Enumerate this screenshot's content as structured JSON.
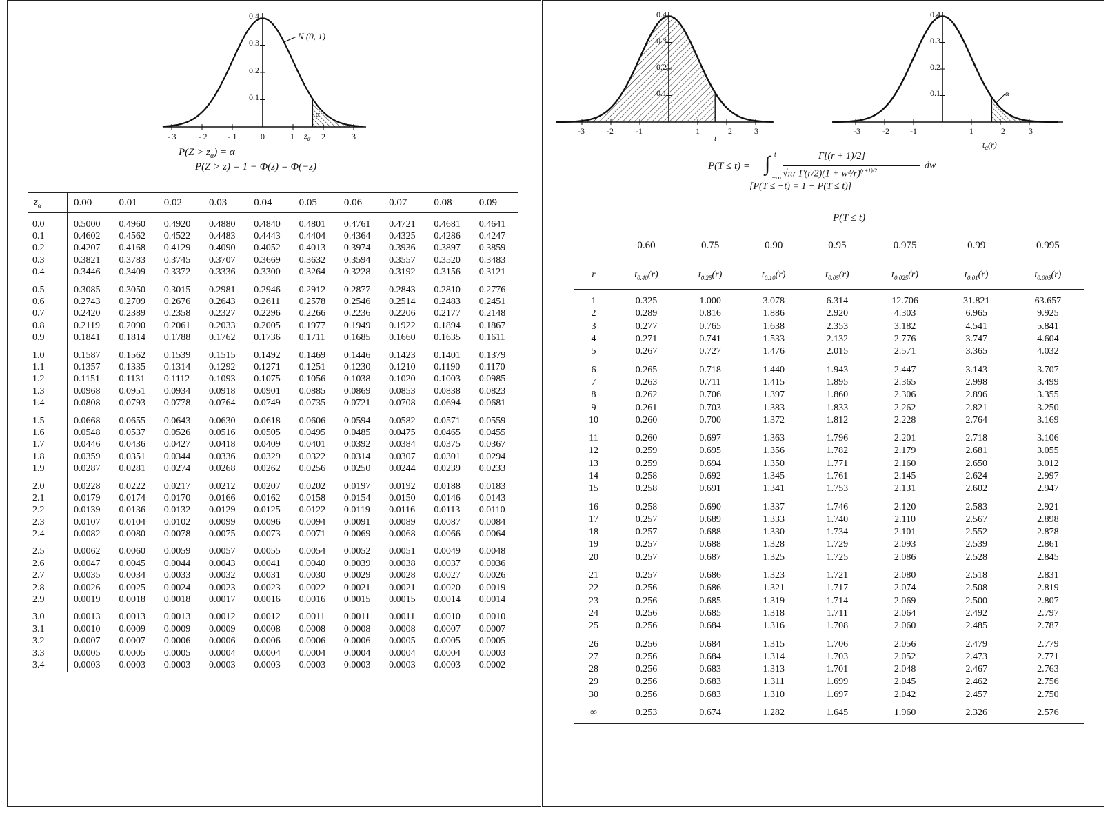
{
  "left": {
    "figure": {
      "y_ticks": [
        "0.4",
        "0.3",
        "0.2",
        "0.1"
      ],
      "x_ticks": [
        "- 3",
        "- 2",
        "- 1",
        "0",
        "1",
        "2",
        "3"
      ],
      "curve_label": "N (0, 1)",
      "z_label": "z",
      "z_sub": "α",
      "alpha_label": "α"
    },
    "formula_1": "P(Z > z",
    "formula_1_sub": "α",
    "formula_1_end": ") = α",
    "formula_2": "P(Z > z) = 1 − Φ(z) = Φ(−z)",
    "table": {
      "corner": "z",
      "corner_sub": "α",
      "columns": [
        "0.00",
        "0.01",
        "0.02",
        "0.03",
        "0.04",
        "0.05",
        "0.06",
        "0.07",
        "0.08",
        "0.09"
      ],
      "rows": [
        [
          "0.0",
          "0.5000",
          "0.4960",
          "0.4920",
          "0.4880",
          "0.4840",
          "0.4801",
          "0.4761",
          "0.4721",
          "0.4681",
          "0.4641"
        ],
        [
          "0.1",
          "0.4602",
          "0.4562",
          "0.4522",
          "0.4483",
          "0.4443",
          "0.4404",
          "0.4364",
          "0.4325",
          "0.4286",
          "0.4247"
        ],
        [
          "0.2",
          "0.4207",
          "0.4168",
          "0.4129",
          "0.4090",
          "0.4052",
          "0.4013",
          "0.3974",
          "0.3936",
          "0.3897",
          "0.3859"
        ],
        [
          "0.3",
          "0.3821",
          "0.3783",
          "0.3745",
          "0.3707",
          "0.3669",
          "0.3632",
          "0.3594",
          "0.3557",
          "0.3520",
          "0.3483"
        ],
        [
          "0.4",
          "0.3446",
          "0.3409",
          "0.3372",
          "0.3336",
          "0.3300",
          "0.3264",
          "0.3228",
          "0.3192",
          "0.3156",
          "0.3121"
        ],
        [
          "0.5",
          "0.3085",
          "0.3050",
          "0.3015",
          "0.2981",
          "0.2946",
          "0.2912",
          "0.2877",
          "0.2843",
          "0.2810",
          "0.2776"
        ],
        [
          "0.6",
          "0.2743",
          "0.2709",
          "0.2676",
          "0.2643",
          "0.2611",
          "0.2578",
          "0.2546",
          "0.2514",
          "0.2483",
          "0.2451"
        ],
        [
          "0.7",
          "0.2420",
          "0.2389",
          "0.2358",
          "0.2327",
          "0.2296",
          "0.2266",
          "0.2236",
          "0.2206",
          "0.2177",
          "0.2148"
        ],
        [
          "0.8",
          "0.2119",
          "0.2090",
          "0.2061",
          "0.2033",
          "0.2005",
          "0.1977",
          "0.1949",
          "0.1922",
          "0.1894",
          "0.1867"
        ],
        [
          "0.9",
          "0.1841",
          "0.1814",
          "0.1788",
          "0.1762",
          "0.1736",
          "0.1711",
          "0.1685",
          "0.1660",
          "0.1635",
          "0.1611"
        ],
        [
          "1.0",
          "0.1587",
          "0.1562",
          "0.1539",
          "0.1515",
          "0.1492",
          "0.1469",
          "0.1446",
          "0.1423",
          "0.1401",
          "0.1379"
        ],
        [
          "1.1",
          "0.1357",
          "0.1335",
          "0.1314",
          "0.1292",
          "0.1271",
          "0.1251",
          "0.1230",
          "0.1210",
          "0.1190",
          "0.1170"
        ],
        [
          "1.2",
          "0.1151",
          "0.1131",
          "0.1112",
          "0.1093",
          "0.1075",
          "0.1056",
          "0.1038",
          "0.1020",
          "0.1003",
          "0.0985"
        ],
        [
          "1.3",
          "0.0968",
          "0.0951",
          "0.0934",
          "0.0918",
          "0.0901",
          "0.0885",
          "0.0869",
          "0.0853",
          "0.0838",
          "0.0823"
        ],
        [
          "1.4",
          "0.0808",
          "0.0793",
          "0.0778",
          "0.0764",
          "0.0749",
          "0.0735",
          "0.0721",
          "0.0708",
          "0.0694",
          "0.0681"
        ],
        [
          "1.5",
          "0.0668",
          "0.0655",
          "0.0643",
          "0.0630",
          "0.0618",
          "0.0606",
          "0.0594",
          "0.0582",
          "0.0571",
          "0.0559"
        ],
        [
          "1.6",
          "0.0548",
          "0.0537",
          "0.0526",
          "0.0516",
          "0.0505",
          "0.0495",
          "0.0485",
          "0.0475",
          "0.0465",
          "0.0455"
        ],
        [
          "1.7",
          "0.0446",
          "0.0436",
          "0.0427",
          "0.0418",
          "0.0409",
          "0.0401",
          "0.0392",
          "0.0384",
          "0.0375",
          "0.0367"
        ],
        [
          "1.8",
          "0.0359",
          "0.0351",
          "0.0344",
          "0.0336",
          "0.0329",
          "0.0322",
          "0.0314",
          "0.0307",
          "0.0301",
          "0.0294"
        ],
        [
          "1.9",
          "0.0287",
          "0.0281",
          "0.0274",
          "0.0268",
          "0.0262",
          "0.0256",
          "0.0250",
          "0.0244",
          "0.0239",
          "0.0233"
        ],
        [
          "2.0",
          "0.0228",
          "0.0222",
          "0.0217",
          "0.0212",
          "0.0207",
          "0.0202",
          "0.0197",
          "0.0192",
          "0.0188",
          "0.0183"
        ],
        [
          "2.1",
          "0.0179",
          "0.0174",
          "0.0170",
          "0.0166",
          "0.0162",
          "0.0158",
          "0.0154",
          "0.0150",
          "0.0146",
          "0.0143"
        ],
        [
          "2.2",
          "0.0139",
          "0.0136",
          "0.0132",
          "0.0129",
          "0.0125",
          "0.0122",
          "0.0119",
          "0.0116",
          "0.0113",
          "0.0110"
        ],
        [
          "2.3",
          "0.0107",
          "0.0104",
          "0.0102",
          "0.0099",
          "0.0096",
          "0.0094",
          "0.0091",
          "0.0089",
          "0.0087",
          "0.0084"
        ],
        [
          "2.4",
          "0.0082",
          "0.0080",
          "0.0078",
          "0.0075",
          "0.0073",
          "0.0071",
          "0.0069",
          "0.0068",
          "0.0066",
          "0.0064"
        ],
        [
          "2.5",
          "0.0062",
          "0.0060",
          "0.0059",
          "0.0057",
          "0.0055",
          "0.0054",
          "0.0052",
          "0.0051",
          "0.0049",
          "0.0048"
        ],
        [
          "2.6",
          "0.0047",
          "0.0045",
          "0.0044",
          "0.0043",
          "0.0041",
          "0.0040",
          "0.0039",
          "0.0038",
          "0.0037",
          "0.0036"
        ],
        [
          "2.7",
          "0.0035",
          "0.0034",
          "0.0033",
          "0.0032",
          "0.0031",
          "0.0030",
          "0.0029",
          "0.0028",
          "0.0027",
          "0.0026"
        ],
        [
          "2.8",
          "0.0026",
          "0.0025",
          "0.0024",
          "0.0023",
          "0.0023",
          "0.0022",
          "0.0021",
          "0.0021",
          "0.0020",
          "0.0019"
        ],
        [
          "2.9",
          "0.0019",
          "0.0018",
          "0.0018",
          "0.0017",
          "0.0016",
          "0.0016",
          "0.0015",
          "0.0015",
          "0.0014",
          "0.0014"
        ],
        [
          "3.0",
          "0.0013",
          "0.0013",
          "0.0013",
          "0.0012",
          "0.0012",
          "0.0011",
          "0.0011",
          "0.0011",
          "0.0010",
          "0.0010"
        ],
        [
          "3.1",
          "0.0010",
          "0.0009",
          "0.0009",
          "0.0009",
          "0.0008",
          "0.0008",
          "0.0008",
          "0.0008",
          "0.0007",
          "0.0007"
        ],
        [
          "3.2",
          "0.0007",
          "0.0007",
          "0.0006",
          "0.0006",
          "0.0006",
          "0.0006",
          "0.0006",
          "0.0005",
          "0.0005",
          "0.0005"
        ],
        [
          "3.3",
          "0.0005",
          "0.0005",
          "0.0005",
          "0.0004",
          "0.0004",
          "0.0004",
          "0.0004",
          "0.0004",
          "0.0004",
          "0.0003"
        ],
        [
          "3.4",
          "0.0003",
          "0.0003",
          "0.0003",
          "0.0003",
          "0.0003",
          "0.0003",
          "0.0003",
          "0.0003",
          "0.0003",
          "0.0002"
        ]
      ]
    }
  },
  "right": {
    "figure_left": {
      "y_ticks": [
        "0.4",
        "0.3",
        "0.2",
        "0.1"
      ],
      "x_ticks": [
        "-3",
        "-2",
        "-1",
        "1",
        "2",
        "3"
      ],
      "t_label": "t"
    },
    "figure_right": {
      "y_ticks": [
        "0.4",
        "0.3",
        "0.2",
        "0.1"
      ],
      "x_ticks": [
        "-3",
        "-2",
        "-1",
        "1",
        "2",
        "3"
      ],
      "t_label": "t",
      "t_sub": "α",
      "t_arg": "(r)",
      "alpha_label": "α"
    },
    "formula_lhs": "P(T ≤ t) =",
    "formula_int_upper": "t",
    "formula_int_lower": "−∞",
    "formula_numerator": "Γ[(r + 1)/2]",
    "formula_denominator": "√πr Γ(r/2)(1 + w²/r)",
    "formula_denominator_exp": "(r+1)/2",
    "formula_dw": "dw",
    "formula_2": "[P(T ≤ −t) = 1 − P(T ≤ t)]",
    "table": {
      "prob_header": "P(T ≤ t)",
      "probs": [
        "0.60",
        "0.75",
        "0.90",
        "0.95",
        "0.975",
        "0.99",
        "0.995"
      ],
      "r_label": "r",
      "t_heads": [
        {
          "base": "t",
          "sub": "0.40",
          "arg": "(r)"
        },
        {
          "base": "t",
          "sub": "0.25",
          "arg": "(r)"
        },
        {
          "base": "t",
          "sub": "0.10",
          "arg": "(r)"
        },
        {
          "base": "t",
          "sub": "0.05",
          "arg": "(r)"
        },
        {
          "base": "t",
          "sub": "0.025",
          "arg": "(r)"
        },
        {
          "base": "t",
          "sub": "0.01",
          "arg": "(r)"
        },
        {
          "base": "t",
          "sub": "0.005",
          "arg": "(r)"
        }
      ],
      "rows": [
        [
          "1",
          "0.325",
          "1.000",
          "3.078",
          "6.314",
          "12.706",
          "31.821",
          "63.657"
        ],
        [
          "2",
          "0.289",
          "0.816",
          "1.886",
          "2.920",
          "4.303",
          "6.965",
          "9.925"
        ],
        [
          "3",
          "0.277",
          "0.765",
          "1.638",
          "2.353",
          "3.182",
          "4.541",
          "5.841"
        ],
        [
          "4",
          "0.271",
          "0.741",
          "1.533",
          "2.132",
          "2.776",
          "3.747",
          "4.604"
        ],
        [
          "5",
          "0.267",
          "0.727",
          "1.476",
          "2.015",
          "2.571",
          "3.365",
          "4.032"
        ],
        [
          "6",
          "0.265",
          "0.718",
          "1.440",
          "1.943",
          "2.447",
          "3.143",
          "3.707"
        ],
        [
          "7",
          "0.263",
          "0.711",
          "1.415",
          "1.895",
          "2.365",
          "2.998",
          "3.499"
        ],
        [
          "8",
          "0.262",
          "0.706",
          "1.397",
          "1.860",
          "2.306",
          "2.896",
          "3.355"
        ],
        [
          "9",
          "0.261",
          "0.703",
          "1.383",
          "1.833",
          "2.262",
          "2.821",
          "3.250"
        ],
        [
          "10",
          "0.260",
          "0.700",
          "1.372",
          "1.812",
          "2.228",
          "2.764",
          "3.169"
        ],
        [
          "11",
          "0.260",
          "0.697",
          "1.363",
          "1.796",
          "2.201",
          "2.718",
          "3.106"
        ],
        [
          "12",
          "0.259",
          "0.695",
          "1.356",
          "1.782",
          "2.179",
          "2.681",
          "3.055"
        ],
        [
          "13",
          "0.259",
          "0.694",
          "1.350",
          "1.771",
          "2.160",
          "2.650",
          "3.012"
        ],
        [
          "14",
          "0.258",
          "0.692",
          "1.345",
          "1.761",
          "2.145",
          "2.624",
          "2.997"
        ],
        [
          "15",
          "0.258",
          "0.691",
          "1.341",
          "1.753",
          "2.131",
          "2.602",
          "2.947"
        ],
        [
          "16",
          "0.258",
          "0.690",
          "1.337",
          "1.746",
          "2.120",
          "2.583",
          "2.921"
        ],
        [
          "17",
          "0.257",
          "0.689",
          "1.333",
          "1.740",
          "2.110",
          "2.567",
          "2.898"
        ],
        [
          "18",
          "0.257",
          "0.688",
          "1.330",
          "1.734",
          "2.101",
          "2.552",
          "2.878"
        ],
        [
          "19",
          "0.257",
          "0.688",
          "1.328",
          "1.729",
          "2.093",
          "2.539",
          "2.861"
        ],
        [
          "20",
          "0.257",
          "0.687",
          "1.325",
          "1.725",
          "2.086",
          "2.528",
          "2.845"
        ],
        [
          "21",
          "0.257",
          "0.686",
          "1.323",
          "1.721",
          "2.080",
          "2.518",
          "2.831"
        ],
        [
          "22",
          "0.256",
          "0.686",
          "1.321",
          "1.717",
          "2.074",
          "2.508",
          "2.819"
        ],
        [
          "23",
          "0.256",
          "0.685",
          "1.319",
          "1.714",
          "2.069",
          "2.500",
          "2.807"
        ],
        [
          "24",
          "0.256",
          "0.685",
          "1.318",
          "1.711",
          "2.064",
          "2.492",
          "2.797"
        ],
        [
          "25",
          "0.256",
          "0.684",
          "1.316",
          "1.708",
          "2.060",
          "2.485",
          "2.787"
        ],
        [
          "26",
          "0.256",
          "0.684",
          "1.315",
          "1.706",
          "2.056",
          "2.479",
          "2.779"
        ],
        [
          "27",
          "0.256",
          "0.684",
          "1.314",
          "1.703",
          "2.052",
          "2.473",
          "2.771"
        ],
        [
          "28",
          "0.256",
          "0.683",
          "1.313",
          "1.701",
          "2.048",
          "2.467",
          "2.763"
        ],
        [
          "29",
          "0.256",
          "0.683",
          "1.311",
          "1.699",
          "2.045",
          "2.462",
          "2.756"
        ],
        [
          "30",
          "0.256",
          "0.683",
          "1.310",
          "1.697",
          "2.042",
          "2.457",
          "2.750"
        ],
        [
          "∞",
          "0.253",
          "0.674",
          "1.282",
          "1.645",
          "1.960",
          "2.326",
          "2.576"
        ]
      ]
    }
  }
}
